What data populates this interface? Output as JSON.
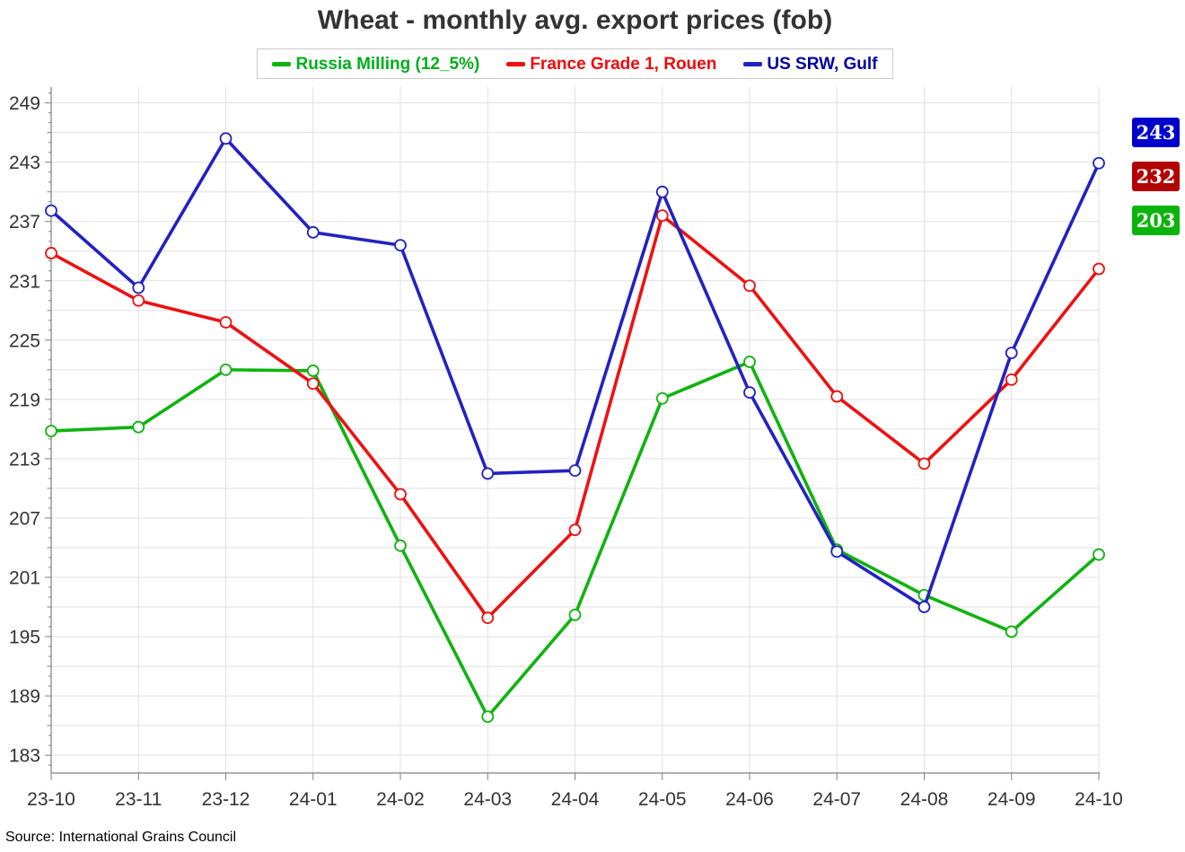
{
  "title": "Wheat - monthly avg. export prices (fob)",
  "source": "Source: International Grains Council",
  "legend": {
    "items": [
      {
        "label": "Russia Milling (12_5%)",
        "text_color": "#00ae1c",
        "dash_color": "#0fb30f"
      },
      {
        "label": "France Grade 1, Rouen",
        "text_color": "#ee0a0a",
        "dash_color": "#ee1111"
      },
      {
        "label": "US SRW, Gulf",
        "text_color": "#0000a0",
        "dash_color": "#2222c2"
      }
    ]
  },
  "end_labels": [
    {
      "text": "243",
      "bg": "#0101cc",
      "series": "US SRW, Gulf"
    },
    {
      "text": "232",
      "bg": "#b20404",
      "series": "France Grade 1, Rouen"
    },
    {
      "text": "203",
      "bg": "#0bb40b",
      "series": "Russia Milling (12_5%)"
    }
  ],
  "chart_data": {
    "type": "line",
    "x_labels": [
      "23-10",
      "23-11",
      "23-12",
      "24-01",
      "24-02",
      "24-03",
      "24-04",
      "24-05",
      "24-06",
      "24-07",
      "24-08",
      "24-09",
      "24-10"
    ],
    "series": [
      {
        "name": "Russia Milling (12_5%)",
        "color": "#0fb30f",
        "values": [
          215.8,
          216.2,
          222.0,
          221.9,
          204.2,
          186.9,
          197.2,
          219.1,
          222.8,
          203.8,
          199.2,
          195.5,
          203.3
        ]
      },
      {
        "name": "France Grade 1, Rouen",
        "color": "#ee1111",
        "values": [
          233.8,
          229.0,
          226.8,
          220.6,
          209.4,
          196.9,
          205.8,
          237.6,
          230.5,
          219.3,
          212.5,
          221.0,
          232.2
        ]
      },
      {
        "name": "US SRW, Gulf",
        "color": "#2222c2",
        "values": [
          238.1,
          230.3,
          245.4,
          235.9,
          234.6,
          211.5,
          211.8,
          240.0,
          219.7,
          203.6,
          198.0,
          223.7,
          242.9
        ]
      }
    ],
    "ylim": [
      181.2,
      250.6
    ],
    "y_tick_labels": [
      183,
      189,
      195,
      201,
      207,
      213,
      219,
      225,
      231,
      237,
      243,
      249
    ],
    "y_grid_step": 3,
    "y_minor_tick_step": 1,
    "grid": true,
    "legend_position": "top"
  },
  "colors": {
    "background": "#ffffff",
    "grid": "#e1e1e1",
    "axis": "#808080",
    "tick_label": "#333333",
    "title": "#333333",
    "marker_fill": "#ffffff"
  }
}
